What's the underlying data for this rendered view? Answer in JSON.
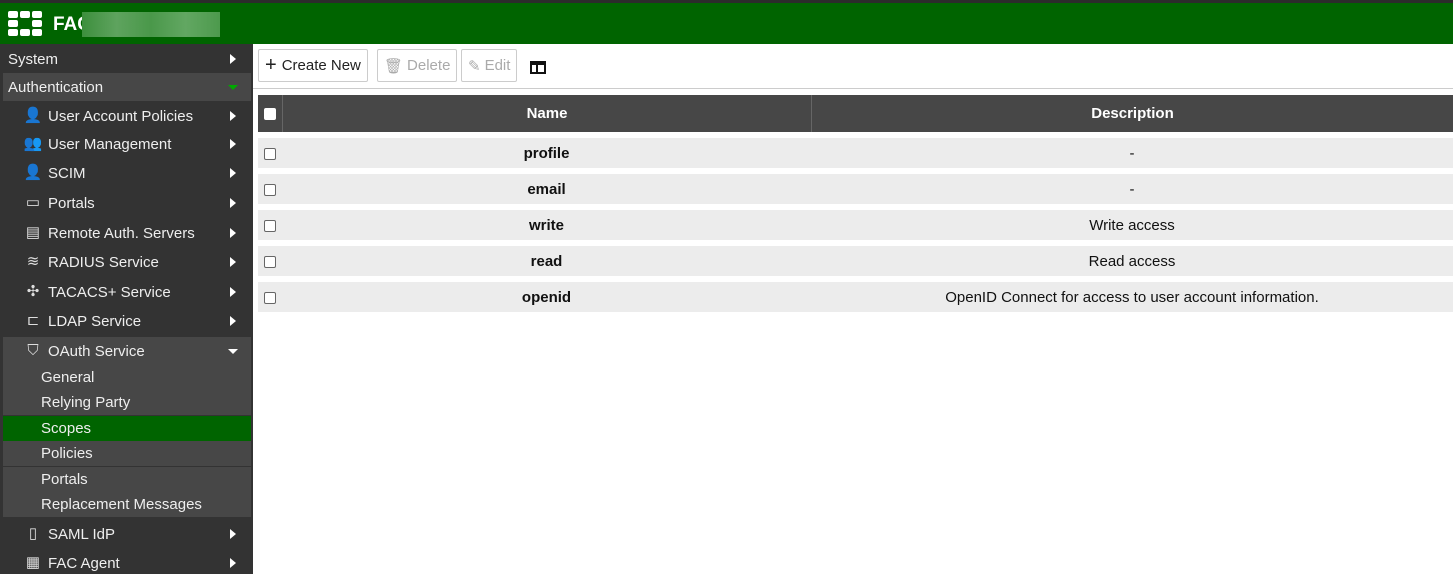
{
  "header": {
    "title": "FAC"
  },
  "sidebar": {
    "items": [
      {
        "label": "System",
        "level": 0
      },
      {
        "label": "Authentication",
        "level": 0
      },
      {
        "label": "User Account Policies",
        "icon": "user-wrench-icon"
      },
      {
        "label": "User Management",
        "icon": "users-icon"
      },
      {
        "label": "SCIM",
        "icon": "user-sync-icon"
      },
      {
        "label": "Portals",
        "icon": "portal-icon"
      },
      {
        "label": "Remote Auth. Servers",
        "icon": "server-icon"
      },
      {
        "label": "RADIUS Service",
        "icon": "wifi-icon"
      },
      {
        "label": "TACACS+ Service",
        "icon": "network-icon"
      },
      {
        "label": "LDAP Service",
        "icon": "tree-icon"
      },
      {
        "label": "OAuth Service",
        "icon": "shield-icon"
      },
      {
        "label": "General"
      },
      {
        "label": "Relying Party"
      },
      {
        "label": "Scopes",
        "active": true
      },
      {
        "label": "Policies"
      },
      {
        "label": "Portals"
      },
      {
        "label": "Replacement Messages"
      },
      {
        "label": "SAML IdP",
        "icon": "document-icon"
      },
      {
        "label": "FAC Agent",
        "icon": "agent-icon"
      }
    ]
  },
  "toolbar": {
    "create": "Create New",
    "delete": "Delete",
    "edit": "Edit"
  },
  "table": {
    "headers": [
      "Name",
      "Description"
    ],
    "rows": [
      {
        "name": "profile",
        "description": "-"
      },
      {
        "name": "email",
        "description": "-"
      },
      {
        "name": "write",
        "description": "Write access"
      },
      {
        "name": "read",
        "description": "Read access"
      },
      {
        "name": "openid",
        "description": "OpenID Connect for access to user account information."
      }
    ]
  },
  "colors": {
    "brand": "#006400",
    "sidebar": "#333333"
  }
}
